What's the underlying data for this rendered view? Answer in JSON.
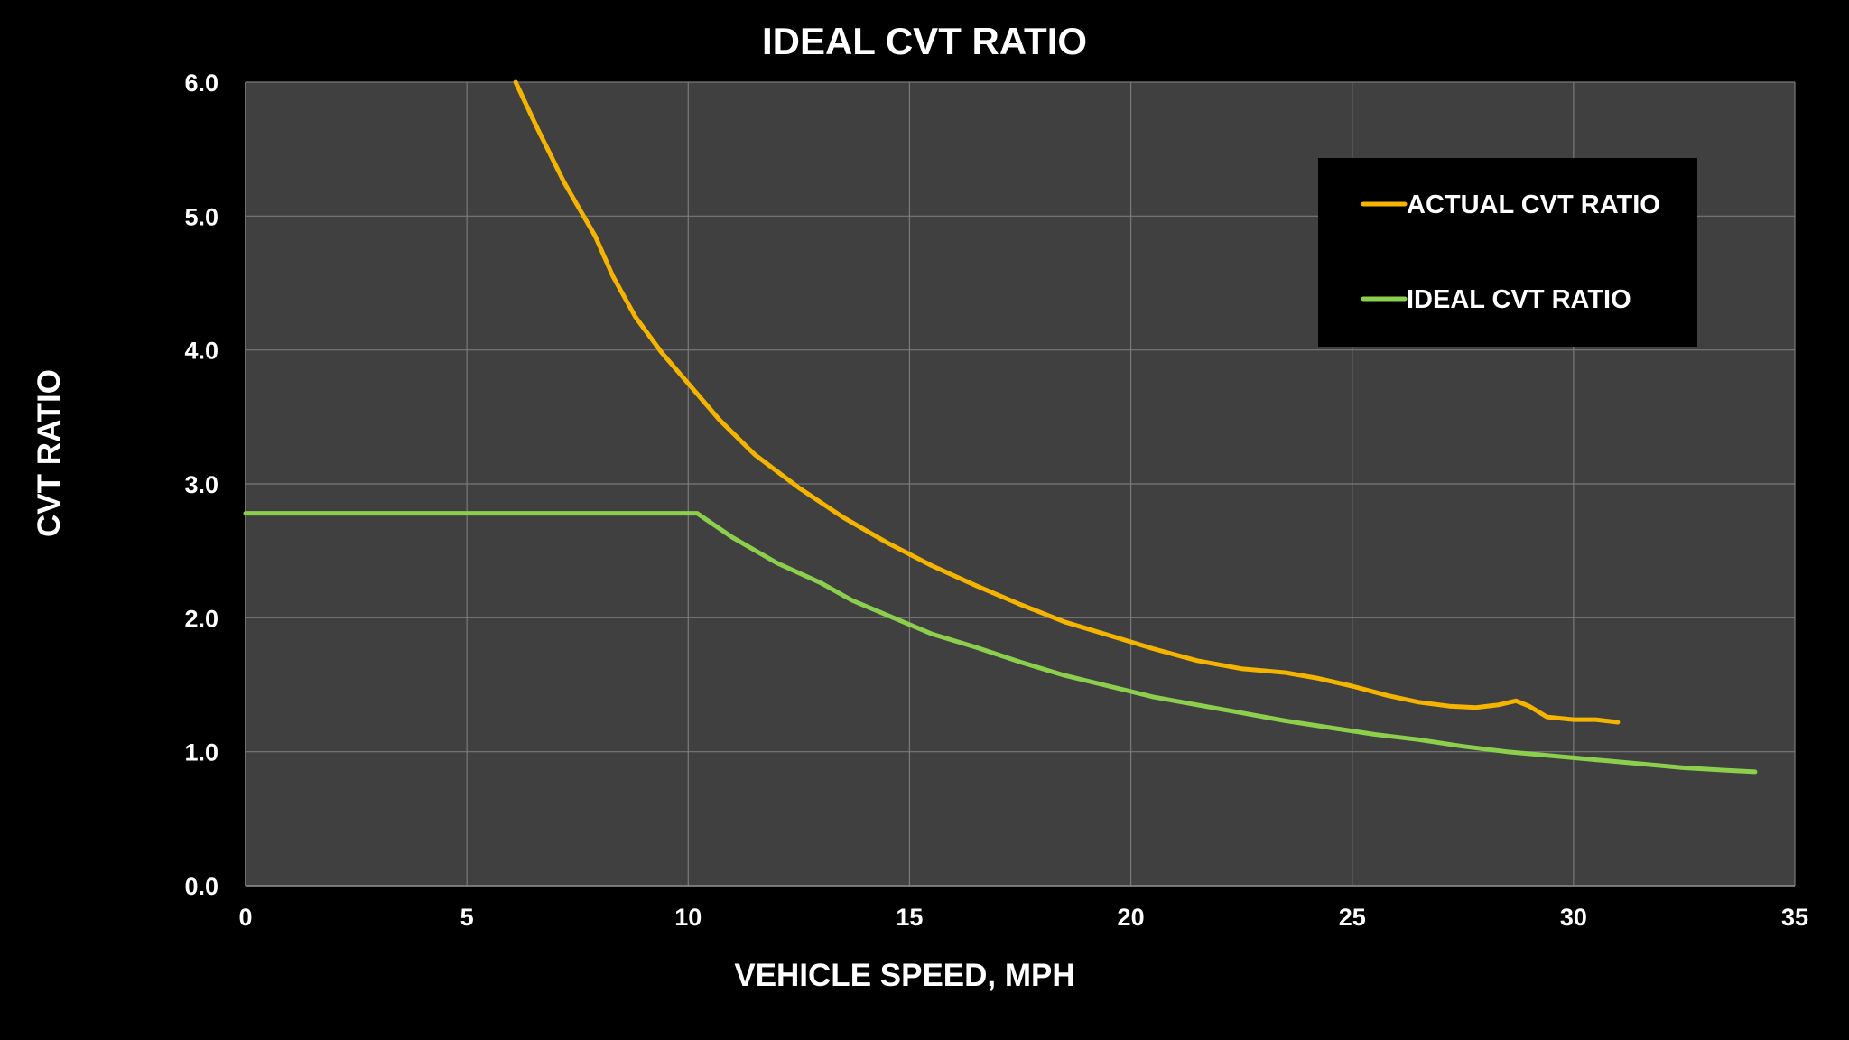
{
  "chart_data": {
    "type": "line",
    "title": "IDEAL CVT RATIO",
    "xlabel": "VEHICLE SPEED, MPH",
    "ylabel": "CVT RATIO",
    "xlim": [
      0,
      35
    ],
    "ylim": [
      0,
      6
    ],
    "x_ticks": [
      "0",
      "5",
      "10",
      "15",
      "20",
      "25",
      "30",
      "35"
    ],
    "y_ticks": [
      "0.0",
      "1.0",
      "2.0",
      "3.0",
      "4.0",
      "5.0",
      "6.0"
    ],
    "grid": true,
    "legend_position": "top-right",
    "background_color": "#000000",
    "plot_background_color": "#404040",
    "grid_color": "#7a7a7a",
    "series": [
      {
        "name": "ACTUAL CVT RATIO",
        "color": "#f5b400",
        "points": [
          [
            6.1,
            6.0
          ],
          [
            6.6,
            5.65
          ],
          [
            7.2,
            5.25
          ],
          [
            7.9,
            4.85
          ],
          [
            8.3,
            4.55
          ],
          [
            8.8,
            4.25
          ],
          [
            9.4,
            3.98
          ],
          [
            10.0,
            3.75
          ],
          [
            10.7,
            3.48
          ],
          [
            11.5,
            3.22
          ],
          [
            12.5,
            2.97
          ],
          [
            13.5,
            2.75
          ],
          [
            14.5,
            2.56
          ],
          [
            15.5,
            2.39
          ],
          [
            16.5,
            2.24
          ],
          [
            17.5,
            2.1
          ],
          [
            18.5,
            1.97
          ],
          [
            19.5,
            1.87
          ],
          [
            20.5,
            1.77
          ],
          [
            21.5,
            1.68
          ],
          [
            22.5,
            1.62
          ],
          [
            23.5,
            1.59
          ],
          [
            24.2,
            1.55
          ],
          [
            25.0,
            1.49
          ],
          [
            25.8,
            1.42
          ],
          [
            26.5,
            1.37
          ],
          [
            27.2,
            1.34
          ],
          [
            27.8,
            1.33
          ],
          [
            28.3,
            1.35
          ],
          [
            28.7,
            1.38
          ],
          [
            29.0,
            1.34
          ],
          [
            29.4,
            1.26
          ],
          [
            30.0,
            1.24
          ],
          [
            30.5,
            1.24
          ],
          [
            31.0,
            1.22
          ]
        ]
      },
      {
        "name": "IDEAL CVT RATIO",
        "color": "#8ccf4d",
        "points": [
          [
            0,
            2.78
          ],
          [
            10.2,
            2.78
          ],
          [
            11.0,
            2.6
          ],
          [
            12.0,
            2.41
          ],
          [
            13.0,
            2.26
          ],
          [
            13.7,
            2.13
          ],
          [
            15.0,
            1.95
          ],
          [
            15.5,
            1.88
          ],
          [
            16.5,
            1.78
          ],
          [
            17.5,
            1.67
          ],
          [
            18.5,
            1.57
          ],
          [
            19.5,
            1.49
          ],
          [
            20.5,
            1.41
          ],
          [
            21.5,
            1.35
          ],
          [
            22.5,
            1.29
          ],
          [
            23.5,
            1.23
          ],
          [
            24.5,
            1.18
          ],
          [
            25.5,
            1.13
          ],
          [
            26.5,
            1.09
          ],
          [
            27.5,
            1.04
          ],
          [
            28.5,
            1.0
          ],
          [
            29.5,
            0.97
          ],
          [
            30.5,
            0.94
          ],
          [
            31.5,
            0.91
          ],
          [
            32.5,
            0.88
          ],
          [
            33.5,
            0.86
          ],
          [
            34.1,
            0.85
          ]
        ]
      }
    ]
  }
}
